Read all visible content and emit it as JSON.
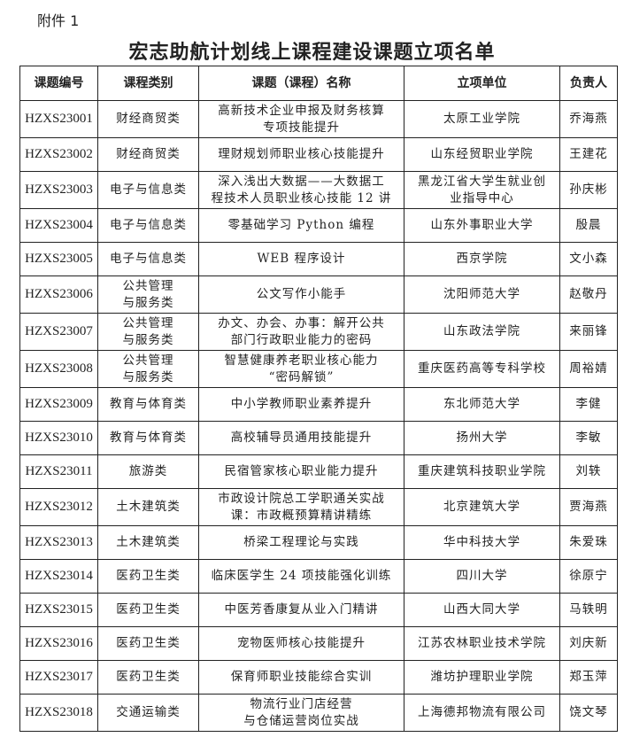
{
  "attachment_label": "附件 1",
  "title": "宏志助航计划线上课程建设课题立项名单",
  "columns": [
    "课题编号",
    "课程类别",
    "课题（课程）名称",
    "立项单位",
    "负责人"
  ],
  "rows": [
    [
      "HZXS23001",
      "财经商贸类",
      "高新技术企业申报及财务核算\n专项技能提升",
      "太原工业学院",
      "乔海燕"
    ],
    [
      "HZXS23002",
      "财经商贸类",
      "理财规划师职业核心技能提升",
      "山东经贸职业学院",
      "王建花"
    ],
    [
      "HZXS23003",
      "电子与信息类",
      "深入浅出大数据——大数据工\n程技术人员职业核心技能 12 讲",
      "黑龙江省大学生就业创\n业指导中心",
      "孙庆彬"
    ],
    [
      "HZXS23004",
      "电子与信息类",
      "零基础学习 Python 编程",
      "山东外事职业大学",
      "殷晨"
    ],
    [
      "HZXS23005",
      "电子与信息类",
      "WEB 程序设计",
      "西京学院",
      "文小森"
    ],
    [
      "HZXS23006",
      "公共管理\n与服务类",
      "公文写作小能手",
      "沈阳师范大学",
      "赵敬丹"
    ],
    [
      "HZXS23007",
      "公共管理\n与服务类",
      "办文、办会、办事：解开公共\n部门行政职业能力的密码",
      "山东政法学院",
      "来丽锋"
    ],
    [
      "HZXS23008",
      "公共管理\n与服务类",
      "智慧健康养老职业核心能力\n“密码解锁”",
      "重庆医药高等专科学校",
      "周裕婧"
    ],
    [
      "HZXS23009",
      "教育与体育类",
      "中小学教师职业素养提升",
      "东北师范大学",
      "李健"
    ],
    [
      "HZXS23010",
      "教育与体育类",
      "高校辅导员通用技能提升",
      "扬州大学",
      "李敏"
    ],
    [
      "HZXS23011",
      "旅游类",
      "民宿管家核心职业能力提升",
      "重庆建筑科技职业学院",
      "刘轶"
    ],
    [
      "HZXS23012",
      "土木建筑类",
      "市政设计院总工学职通关实战\n课：市政概预算精讲精练",
      "北京建筑大学",
      "贾海燕"
    ],
    [
      "HZXS23013",
      "土木建筑类",
      "桥梁工程理论与实践",
      "华中科技大学",
      "朱爱珠"
    ],
    [
      "HZXS23014",
      "医药卫生类",
      "临床医学生 24 项技能强化训练",
      "四川大学",
      "徐原宁"
    ],
    [
      "HZXS23015",
      "医药卫生类",
      "中医芳香康复从业入门精讲",
      "山西大同大学",
      "马轶明"
    ],
    [
      "HZXS23016",
      "医药卫生类",
      "宠物医师核心技能提升",
      "江苏农林职业技术学院",
      "刘庆新"
    ],
    [
      "HZXS23017",
      "医药卫生类",
      "保育师职业技能综合实训",
      "潍坊护理职业学院",
      "郑玉萍"
    ],
    [
      "HZXS23018",
      "交通运输类",
      "物流行业门店经营\n与仓储运营岗位实战",
      "上海德邦物流有限公司",
      "饶文琴"
    ]
  ]
}
